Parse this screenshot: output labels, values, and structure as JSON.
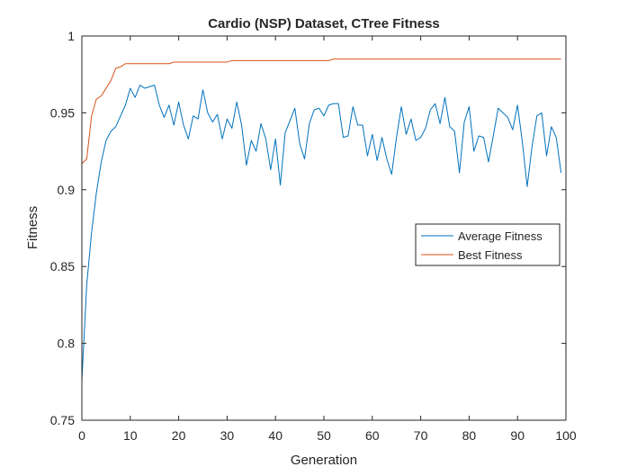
{
  "chart_data": {
    "type": "line",
    "title": "Cardio (NSP) Dataset, CTree Fitness",
    "xlabel": "Generation",
    "ylabel": "Fitness",
    "xlim": [
      0,
      100
    ],
    "ylim": [
      0.75,
      1
    ],
    "xticks": [
      "0",
      "10",
      "20",
      "30",
      "40",
      "50",
      "60",
      "70",
      "80",
      "90",
      "100"
    ],
    "yticks": [
      "0.75",
      "0.8",
      "0.85",
      "0.9",
      "0.95",
      "1"
    ],
    "grid": false,
    "legend_position": "right",
    "series": [
      {
        "name": "Average Fitness",
        "color": "#0072BD",
        "x": [
          0,
          1,
          2,
          3,
          4,
          5,
          6,
          7,
          8,
          9,
          10,
          11,
          12,
          13,
          14,
          15,
          16,
          17,
          18,
          19,
          20,
          21,
          22,
          23,
          24,
          25,
          26,
          27,
          28,
          29,
          30,
          31,
          32,
          33,
          34,
          35,
          36,
          37,
          38,
          39,
          40,
          41,
          42,
          43,
          44,
          45,
          46,
          47,
          48,
          49,
          50,
          51,
          52,
          53,
          54,
          55,
          56,
          57,
          58,
          59,
          60,
          61,
          62,
          63,
          64,
          65,
          66,
          67,
          68,
          69,
          70,
          71,
          72,
          73,
          74,
          75,
          76,
          77,
          78,
          79,
          80,
          81,
          82,
          83,
          84,
          85,
          86,
          87,
          88,
          89,
          90,
          91,
          92,
          93,
          94,
          95,
          96,
          97,
          98,
          99
        ],
        "values": [
          0.776,
          0.838,
          0.872,
          0.898,
          0.918,
          0.932,
          0.938,
          0.941,
          0.948,
          0.955,
          0.966,
          0.96,
          0.968,
          0.966,
          0.967,
          0.968,
          0.955,
          0.947,
          0.955,
          0.942,
          0.957,
          0.942,
          0.933,
          0.948,
          0.946,
          0.965,
          0.95,
          0.944,
          0.949,
          0.933,
          0.946,
          0.94,
          0.957,
          0.942,
          0.916,
          0.932,
          0.925,
          0.943,
          0.933,
          0.913,
          0.933,
          0.903,
          0.937,
          0.945,
          0.953,
          0.93,
          0.92,
          0.943,
          0.952,
          0.953,
          0.948,
          0.955,
          0.956,
          0.956,
          0.934,
          0.935,
          0.954,
          0.942,
          0.942,
          0.922,
          0.936,
          0.919,
          0.934,
          0.92,
          0.91,
          0.934,
          0.954,
          0.936,
          0.946,
          0.932,
          0.934,
          0.94,
          0.952,
          0.956,
          0.943,
          0.96,
          0.941,
          0.938,
          0.911,
          0.944,
          0.954,
          0.925,
          0.935,
          0.934,
          0.918,
          0.935,
          0.953,
          0.95,
          0.947,
          0.939,
          0.955,
          0.931,
          0.902,
          0.928,
          0.948,
          0.95,
          0.922,
          0.941,
          0.934,
          0.911
        ]
      },
      {
        "name": "Best Fitness",
        "color": "#D95319",
        "x": [
          0,
          1,
          2,
          3,
          4,
          5,
          6,
          7,
          8,
          9,
          10,
          11,
          12,
          13,
          14,
          15,
          16,
          17,
          18,
          19,
          20,
          21,
          22,
          23,
          24,
          25,
          26,
          27,
          28,
          29,
          30,
          31,
          32,
          33,
          34,
          35,
          36,
          37,
          38,
          39,
          40,
          41,
          42,
          43,
          44,
          45,
          46,
          47,
          48,
          49,
          50,
          51,
          52,
          53,
          54,
          55,
          56,
          57,
          58,
          59,
          60,
          61,
          62,
          63,
          64,
          65,
          66,
          67,
          68,
          69,
          70,
          71,
          72,
          73,
          74,
          75,
          76,
          77,
          78,
          79,
          80,
          81,
          82,
          83,
          84,
          85,
          86,
          87,
          88,
          89,
          90,
          91,
          92,
          93,
          94,
          95,
          96,
          97,
          98,
          99
        ],
        "values": [
          0.917,
          0.92,
          0.948,
          0.959,
          0.961,
          0.966,
          0.971,
          0.979,
          0.98,
          0.982,
          0.982,
          0.982,
          0.982,
          0.982,
          0.982,
          0.982,
          0.982,
          0.982,
          0.982,
          0.983,
          0.983,
          0.983,
          0.983,
          0.983,
          0.983,
          0.983,
          0.983,
          0.983,
          0.983,
          0.983,
          0.983,
          0.984,
          0.984,
          0.984,
          0.984,
          0.984,
          0.984,
          0.984,
          0.984,
          0.984,
          0.984,
          0.984,
          0.984,
          0.984,
          0.984,
          0.984,
          0.984,
          0.984,
          0.984,
          0.984,
          0.984,
          0.984,
          0.985,
          0.985,
          0.985,
          0.985,
          0.985,
          0.985,
          0.985,
          0.985,
          0.985,
          0.985,
          0.985,
          0.985,
          0.985,
          0.985,
          0.985,
          0.985,
          0.985,
          0.985,
          0.985,
          0.985,
          0.985,
          0.985,
          0.985,
          0.985,
          0.985,
          0.985,
          0.985,
          0.985,
          0.985,
          0.985,
          0.985,
          0.985,
          0.985,
          0.985,
          0.985,
          0.985,
          0.985,
          0.985,
          0.985,
          0.985,
          0.985,
          0.985,
          0.985,
          0.985,
          0.985,
          0.985,
          0.985,
          0.985
        ]
      }
    ]
  }
}
